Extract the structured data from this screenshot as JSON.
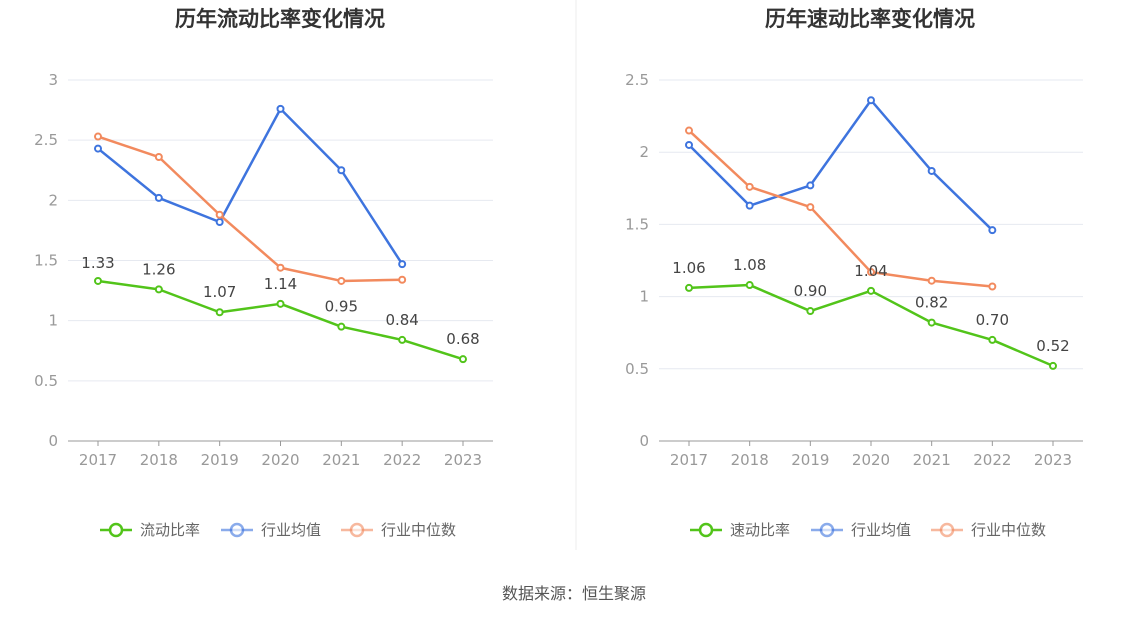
{
  "source": "数据来源：恒生聚源",
  "chart_data": [
    {
      "type": "line",
      "title": "历年流动比率变化情况",
      "categories": [
        "2017",
        "2018",
        "2019",
        "2020",
        "2021",
        "2022",
        "2023"
      ],
      "ylim": [
        0,
        3
      ],
      "yticks": [
        "0",
        "0.5",
        "1",
        "1.5",
        "2",
        "2.5",
        "3"
      ],
      "grid": true,
      "legend_position": "bottom",
      "series": [
        {
          "name": "流动比率",
          "color": "#52c41a",
          "values": [
            1.33,
            1.26,
            1.07,
            1.14,
            0.95,
            0.84,
            0.68
          ],
          "labels": [
            "1.33",
            "1.26",
            "1.07",
            "1.14",
            "0.95",
            "0.84",
            "0.68"
          ]
        },
        {
          "name": "行业均值",
          "color": "#3e74de",
          "values": [
            2.43,
            2.02,
            1.82,
            2.76,
            2.25,
            1.47,
            null
          ]
        },
        {
          "name": "行业中位数",
          "color": "#f28a5e",
          "values": [
            2.53,
            2.36,
            1.88,
            1.44,
            1.33,
            1.34,
            null
          ]
        }
      ]
    },
    {
      "type": "line",
      "title": "历年速动比率变化情况",
      "categories": [
        "2017",
        "2018",
        "2019",
        "2020",
        "2021",
        "2022",
        "2023"
      ],
      "ylim": [
        0,
        2.5
      ],
      "yticks": [
        "0",
        "0.5",
        "1",
        "1.5",
        "2",
        "2.5"
      ],
      "grid": true,
      "legend_position": "bottom",
      "series": [
        {
          "name": "速动比率",
          "color": "#52c41a",
          "values": [
            1.06,
            1.08,
            0.9,
            1.04,
            0.82,
            0.7,
            0.52
          ],
          "labels": [
            "1.06",
            "1.08",
            "0.90",
            "1.04",
            "0.82",
            "0.70",
            "0.52"
          ]
        },
        {
          "name": "行业均值",
          "color": "#3e74de",
          "values": [
            2.05,
            1.63,
            1.77,
            2.36,
            1.87,
            1.46,
            null
          ]
        },
        {
          "name": "行业中位数",
          "color": "#f28a5e",
          "values": [
            2.15,
            1.76,
            1.62,
            1.17,
            1.11,
            1.07,
            null
          ]
        }
      ]
    }
  ]
}
